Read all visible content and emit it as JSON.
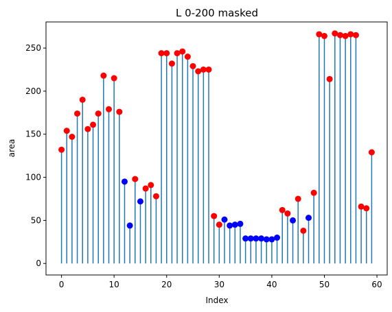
{
  "chart_data": {
    "type": "stem",
    "title": "L 0-200 masked",
    "xlabel": "Index",
    "ylabel": "area",
    "xlim": [
      -2.95,
      61.95
    ],
    "ylim": [
      -13.35,
      280.3
    ],
    "xticks": [
      0,
      10,
      20,
      30,
      40,
      50,
      60
    ],
    "yticks": [
      0,
      50,
      100,
      150,
      200,
      250
    ],
    "grid": false,
    "legend": "none",
    "stem_color": "#1f77b4",
    "marker_colors": {
      "red": "#ff0000",
      "blue": "#0000ff"
    },
    "x": [
      0,
      1,
      2,
      3,
      4,
      5,
      6,
      7,
      8,
      9,
      10,
      11,
      12,
      13,
      14,
      15,
      16,
      17,
      18,
      19,
      20,
      21,
      22,
      23,
      24,
      25,
      26,
      27,
      28,
      29,
      30,
      31,
      32,
      33,
      34,
      35,
      36,
      37,
      38,
      39,
      40,
      41,
      42,
      43,
      44,
      45,
      46,
      47,
      48,
      49,
      50,
      51,
      52,
      53,
      54,
      55,
      56,
      57,
      58,
      59
    ],
    "y": [
      132,
      154,
      147,
      174,
      190,
      156,
      161,
      174,
      218,
      179,
      215,
      176,
      95,
      44,
      98,
      72,
      87,
      91,
      78,
      244,
      244,
      232,
      244,
      246,
      240,
      229,
      223,
      225,
      225,
      55,
      45,
      51,
      44,
      45,
      46,
      29,
      29,
      29,
      29,
      28,
      28,
      30,
      62,
      58,
      50,
      75,
      38,
      53,
      82,
      266,
      264,
      214,
      267,
      265,
      264,
      266,
      265,
      66,
      64,
      129
    ],
    "point_colors": [
      "red",
      "red",
      "red",
      "red",
      "red",
      "red",
      "red",
      "red",
      "red",
      "red",
      "red",
      "red",
      "blue",
      "blue",
      "red",
      "blue",
      "red",
      "red",
      "red",
      "red",
      "red",
      "red",
      "red",
      "red",
      "red",
      "red",
      "red",
      "red",
      "red",
      "red",
      "red",
      "blue",
      "blue",
      "blue",
      "blue",
      "blue",
      "blue",
      "blue",
      "blue",
      "blue",
      "blue",
      "blue",
      "red",
      "red",
      "blue",
      "red",
      "red",
      "blue",
      "red",
      "red",
      "red",
      "red",
      "red",
      "red",
      "red",
      "red",
      "red",
      "red",
      "red",
      "red"
    ]
  }
}
